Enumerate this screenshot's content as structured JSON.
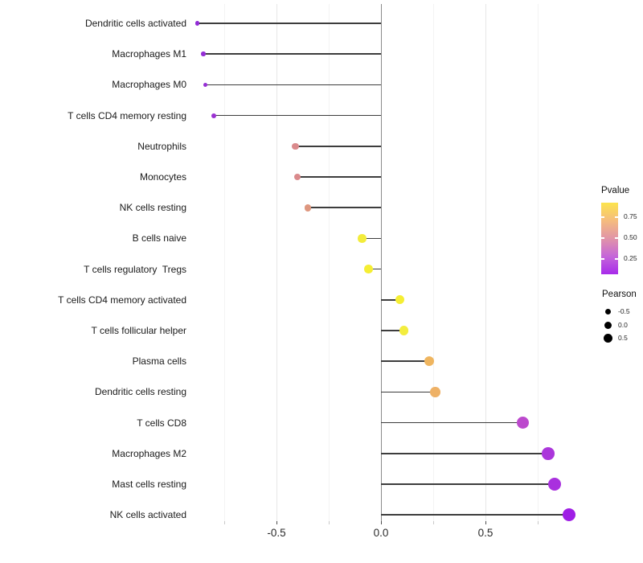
{
  "chart_data": {
    "type": "lollipop",
    "title": "",
    "xlabel": "",
    "ylabel": "",
    "x_axis": {
      "tick_labels": [
        "-0.5",
        "0.0",
        "0.5"
      ],
      "tick_values": [
        -0.5,
        0.0,
        0.5
      ],
      "minor_tick_values": [
        -0.75,
        -0.25,
        0.25,
        0.75
      ],
      "xlim": [
        -0.91,
        0.92
      ],
      "baseline_value": 0.0
    },
    "grid": "on",
    "legend_position": "right",
    "rows": [
      {
        "label": "Dendritic cells activated",
        "pearson": -0.88,
        "pvalue_approx": 0.1,
        "color": "#922cd6"
      },
      {
        "label": "Macrophages M1",
        "pearson": -0.85,
        "pvalue_approx": 0.1,
        "color": "#942ed5"
      },
      {
        "label": "Macrophages M0",
        "pearson": -0.84,
        "pvalue_approx": 0.1,
        "color": "#962fd4"
      },
      {
        "label": "T cells CD4 memory resting",
        "pearson": -0.8,
        "pvalue_approx": 0.15,
        "color": "#9b32d2"
      },
      {
        "label": "Neutrophils",
        "pearson": -0.41,
        "pvalue_approx": 0.5,
        "color": "#da8a8c"
      },
      {
        "label": "Monocytes",
        "pearson": -0.4,
        "pvalue_approx": 0.5,
        "color": "#da8a8c"
      },
      {
        "label": "NK cells resting",
        "pearson": -0.35,
        "pvalue_approx": 0.55,
        "color": "#de977f"
      },
      {
        "label": "B cells naive",
        "pearson": -0.09,
        "pvalue_approx": 0.85,
        "color": "#f3ec3b"
      },
      {
        "label": "T cells regulatory  Tregs",
        "pearson": -0.06,
        "pvalue_approx": 0.9,
        "color": "#f5ee33"
      },
      {
        "label": "T cells CD4 memory activated",
        "pearson": 0.09,
        "pvalue_approx": 0.9,
        "color": "#f5ee33"
      },
      {
        "label": "T cells follicular helper",
        "pearson": 0.11,
        "pvalue_approx": 0.85,
        "color": "#f3ed3e"
      },
      {
        "label": "Plasma cells",
        "pearson": 0.23,
        "pvalue_approx": 0.65,
        "color": "#efb55f"
      },
      {
        "label": "Dendritic cells resting",
        "pearson": 0.26,
        "pvalue_approx": 0.65,
        "color": "#eeb166"
      },
      {
        "label": "T cells CD8",
        "pearson": 0.68,
        "pvalue_approx": 0.3,
        "color": "#bc49cd"
      },
      {
        "label": "Macrophages M2",
        "pearson": 0.8,
        "pvalue_approx": 0.2,
        "color": "#ab36db"
      },
      {
        "label": "Mast cells resting",
        "pearson": 0.83,
        "pvalue_approx": 0.15,
        "color": "#a930de"
      },
      {
        "label": "NK cells activated",
        "pearson": 0.9,
        "pvalue_approx": 0.05,
        "color": "#9f1fe5"
      }
    ],
    "legend": {
      "pvalue": {
        "title": "Pvalue",
        "tick_labels": [
          "0.75",
          "0.50",
          "0.25"
        ],
        "gradient_top_to_bottom": [
          "#fce44d",
          "#f5bc7e",
          "#e194a8",
          "#c566d9",
          "#a72bea"
        ]
      },
      "pearson": {
        "title": "Pearson",
        "items": [
          {
            "label": "-0.5",
            "value": -0.5
          },
          {
            "label": "0.0",
            "value": 0.0
          },
          {
            "label": "0.5",
            "value": 0.5
          }
        ]
      }
    }
  }
}
